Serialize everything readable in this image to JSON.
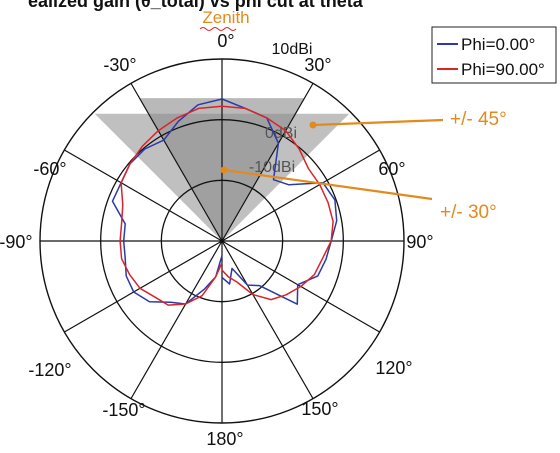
{
  "title_partial": "ealized gain (θ_total) vs phi cut at theta",
  "zenith_label": "Zenith",
  "chart_data": {
    "type": "polar",
    "r_range_dbi": [
      -40,
      10
    ],
    "ring_labels": [
      "10dBi",
      "0dBi",
      "-10dBi"
    ],
    "angle_labels": [
      "0°",
      "30°",
      "60°",
      "90°",
      "120°",
      "150°",
      "180°",
      "-150°",
      "-120°",
      "-90°",
      "-60°",
      "-30°"
    ],
    "grid": true,
    "legend_position": "top-right",
    "series": [
      {
        "name": "Phi=0.00°",
        "color": "#2b3aa8",
        "theta_deg": [
          -180,
          -170,
          -160,
          -150,
          -140,
          -130,
          -120,
          -110,
          -100,
          -90,
          -80,
          -70,
          -60,
          -50,
          -40,
          -30,
          -20,
          -10,
          0,
          10,
          20,
          30,
          40,
          50,
          60,
          70,
          80,
          90,
          100,
          110,
          120,
          130,
          140,
          150,
          160,
          170,
          180
        ],
        "gain_dbi": [
          -36,
          -30,
          -26,
          -20,
          -18,
          -14,
          -12,
          -12,
          -13,
          -13,
          -13,
          -8,
          -8,
          -7,
          -7,
          -8,
          -5,
          -2,
          -1,
          -3,
          -4,
          -9,
          -18,
          -16,
          -8,
          -7,
          -8,
          -10,
          -11,
          -12,
          -16,
          -13,
          -24,
          -26,
          -32,
          -28,
          -30
        ]
      },
      {
        "name": "Phi=90.00°",
        "color": "#d9252a",
        "theta_deg": [
          -180,
          -170,
          -160,
          -150,
          -140,
          -130,
          -120,
          -110,
          -100,
          -90,
          -80,
          -70,
          -60,
          -50,
          -40,
          -30,
          -20,
          -10,
          0,
          10,
          20,
          30,
          40,
          50,
          60,
          70,
          80,
          90,
          100,
          110,
          120,
          130,
          140,
          150,
          160,
          170,
          180
        ],
        "gain_dbi": [
          -34,
          -30,
          -24,
          -20,
          -17,
          -16,
          -14,
          -13,
          -12,
          -12,
          -12,
          -11,
          -8,
          -7,
          -6,
          -5,
          -4,
          -3,
          -3,
          -3,
          -4,
          -5,
          -7,
          -9,
          -9,
          -9,
          -9,
          -10,
          -12,
          -13,
          -15,
          -17,
          -19,
          -23,
          -28,
          -30,
          -32
        ]
      }
    ],
    "sectors": [
      {
        "label": "+/- 45°",
        "half_angle_deg": 45
      },
      {
        "label": "+/- 30°",
        "half_angle_deg": 30
      }
    ],
    "annotation_color": "#e38a1c"
  }
}
